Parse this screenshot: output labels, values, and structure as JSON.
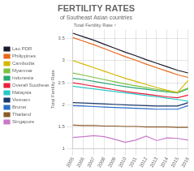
{
  "chart_data": {
    "type": "line",
    "title": "FERTILITY RATES",
    "subtitle": "of Southeast Asian countries",
    "y_label": "Total Fertility Rate",
    "annotations": [
      "Total Fertility Rate ↑"
    ],
    "categories": [
      "2005",
      "2006",
      "2007",
      "2008",
      "2009",
      "2010",
      "2011",
      "2012",
      "2013",
      "2014",
      "2015",
      "2016"
    ],
    "series": [
      {
        "name": "Lao PDR",
        "color": "#1a1a2e",
        "values": [
          3.62,
          3.54,
          3.46,
          3.37,
          3.28,
          3.19,
          3.11,
          3.02,
          2.94,
          2.86,
          2.78,
          2.72
        ]
      },
      {
        "name": "Philippines",
        "color": "#e8671a",
        "values": [
          3.52,
          3.44,
          3.36,
          3.27,
          3.18,
          3.09,
          3.01,
          2.92,
          2.84,
          2.76,
          2.68,
          2.62
        ]
      },
      {
        "name": "Cambodia",
        "color": "#d4b800",
        "values": [
          3.0,
          2.92,
          2.84,
          2.76,
          2.68,
          2.6,
          2.53,
          2.46,
          2.39,
          2.33,
          2.28,
          2.55
        ]
      },
      {
        "name": "Myanmar",
        "color": "#7dc242",
        "values": [
          2.72,
          2.67,
          2.62,
          2.57,
          2.52,
          2.47,
          2.43,
          2.39,
          2.35,
          2.31,
          2.28,
          2.38
        ]
      },
      {
        "name": "Indonesia",
        "color": "#2aa876",
        "values": [
          2.6,
          2.57,
          2.53,
          2.49,
          2.45,
          2.41,
          2.38,
          2.35,
          2.32,
          2.29,
          2.27,
          2.36
        ]
      },
      {
        "name": "Overall Southeast Asia",
        "color": "#e8203a",
        "values": [
          2.5,
          2.46,
          2.42,
          2.38,
          2.34,
          2.3,
          2.27,
          2.24,
          2.21,
          2.18,
          2.16,
          2.22
        ]
      },
      {
        "name": "Malaysia",
        "color": "#2ac8c8",
        "values": [
          2.42,
          2.39,
          2.36,
          2.33,
          2.3,
          2.27,
          2.24,
          2.21,
          2.18,
          2.15,
          2.12,
          2.08
        ]
      },
      {
        "name": "Vietnam",
        "color": "#1a3a6e",
        "values": [
          2.05,
          2.04,
          2.03,
          2.02,
          2.01,
          2.0,
          1.99,
          1.98,
          1.97,
          1.97,
          1.97,
          2.05
        ]
      },
      {
        "name": "Brunei",
        "color": "#2a6ec8",
        "values": [
          1.98,
          1.97,
          1.96,
          1.95,
          1.94,
          1.93,
          1.92,
          1.91,
          1.9,
          1.9,
          1.9,
          1.98
        ]
      },
      {
        "name": "Thailand",
        "color": "#8b5a2b",
        "values": [
          1.54,
          1.53,
          1.53,
          1.52,
          1.52,
          1.51,
          1.51,
          1.5,
          1.5,
          1.5,
          1.49,
          1.49
        ]
      },
      {
        "name": "Singapore",
        "color": "#c87ac8",
        "values": [
          1.26,
          1.28,
          1.3,
          1.28,
          1.22,
          1.15,
          1.2,
          1.29,
          1.19,
          1.25,
          1.24,
          1.2
        ]
      }
    ],
    "ylim": [
      1.0,
      3.7
    ],
    "yticks": [
      1,
      1.5,
      2,
      2.5,
      3,
      3.5
    ],
    "grid": true,
    "legend": "left"
  }
}
